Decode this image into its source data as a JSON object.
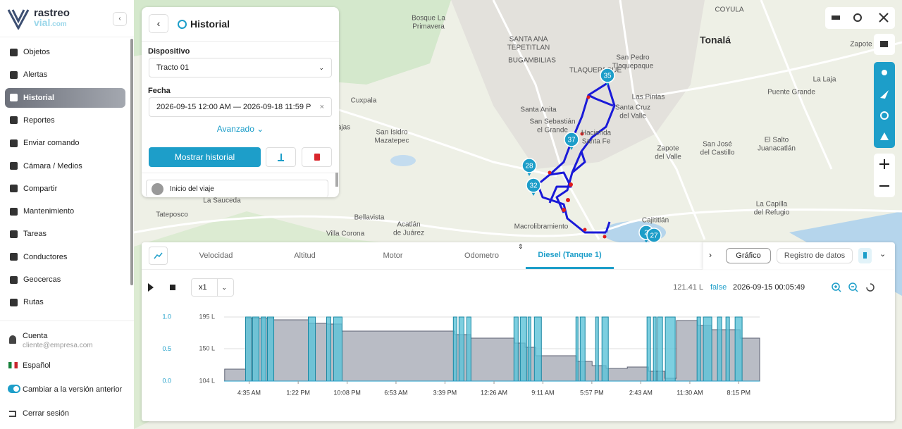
{
  "sidebar": {
    "logo": {
      "line1": "rastreo",
      "line2": "vial",
      "line3": ".com"
    },
    "menu": [
      "Objetos",
      "Alertas",
      "Historial",
      "Reportes",
      "Enviar comando",
      "Cámara / Medios",
      "Compartir",
      "Mantenimiento",
      "Tareas",
      "Conductores",
      "Geocercas",
      "Rutas"
    ],
    "account": {
      "title": "Cuenta",
      "email": "cliente@empresa.com"
    },
    "language": "Español",
    "toggle": "Cambiar a la versión anterior",
    "logout": "Cerrar sesión"
  },
  "history_panel": {
    "title": "Historial",
    "device_label": "Dispositivo",
    "device": "Tracto 01",
    "date_label": "Fecha",
    "date": "2026-09-15 12:00 AM — 2026-09-18 11:59 P",
    "advanced": "Avanzado",
    "show_button": "Mostrar historial",
    "trip_start": "Inicio del viaje"
  },
  "map": {
    "labels": [
      {
        "lines": [
          "Bosque La",
          "Primavera"
        ]
      },
      {
        "lines": [
          "SANTA ANA",
          "TEPETITLAN"
        ]
      },
      {
        "lines": [
          "BUGAMBILIAS"
        ]
      },
      {
        "lines": [
          "COYULA"
        ]
      },
      {
        "lines": [
          "Tonalá"
        ]
      },
      {
        "lines": [
          "San Pedro",
          "Tlaquepaque"
        ]
      },
      {
        "lines": [
          "TLAQUEPAQUE"
        ]
      },
      {
        "lines": [
          "Las Pintas"
        ]
      },
      {
        "lines": [
          "Santa Cruz",
          "del Valle"
        ]
      },
      {
        "lines": [
          "Cuxpala"
        ]
      },
      {
        "lines": [
          "Santa Anita"
        ]
      },
      {
        "lines": [
          "San Sebastián",
          "el Grande"
        ]
      },
      {
        "lines": [
          "Hacienda",
          "Santa Fe"
        ]
      },
      {
        "lines": [
          "San Isidro",
          "Mazatepec"
        ]
      },
      {
        "lines": [
          "ajas"
        ]
      },
      {
        "lines": [
          "Zapote",
          "del Valle"
        ]
      },
      {
        "lines": [
          "San José",
          "del Castillo"
        ]
      },
      {
        "lines": [
          "Puente Grande"
        ]
      },
      {
        "lines": [
          "La Laja"
        ]
      },
      {
        "lines": [
          "Zapote"
        ]
      },
      {
        "lines": [
          "El Salto",
          "Juanacatlán"
        ]
      },
      {
        "lines": [
          "La Sauceda"
        ]
      },
      {
        "lines": [
          "Tateposco"
        ]
      },
      {
        "lines": [
          "Bellavista"
        ]
      },
      {
        "lines": [
          "Acatlán",
          "de Juárez"
        ]
      },
      {
        "lines": [
          "Villa Corona"
        ]
      },
      {
        "lines": [
          "Cajititlán"
        ]
      },
      {
        "lines": [
          "La Capilla",
          "del Refugio"
        ]
      },
      {
        "lines": [
          "Macrolibramiento"
        ]
      }
    ],
    "markers": [
      "35",
      "37",
      "28",
      "32",
      "2",
      "27"
    ]
  },
  "bottom_panel": {
    "tabs": [
      "Velocidad",
      "Altitud",
      "Motor",
      "Odometro",
      "Diesel (Tanque 1)"
    ],
    "buttons": [
      "Gráfico",
      "Registro de datos"
    ],
    "speed": "x1",
    "readout": {
      "fuel": "121.41 L",
      "ignition": "false",
      "time": "2026-09-15 00:05:49"
    }
  },
  "chart_data": {
    "type": "area",
    "xlim": [
      0.1,
      96
    ],
    "xticks": [
      {
        "value": 4.583,
        "label": "4:35 AM"
      },
      {
        "value": 13.367,
        "label": "1:22 PM"
      },
      {
        "value": 22.133,
        "label": "10:08 PM"
      },
      {
        "value": 30.883,
        "label": "6:53 AM"
      },
      {
        "value": 39.65,
        "label": "3:39 PM"
      },
      {
        "value": 48.433,
        "label": "12:26 AM"
      },
      {
        "value": 57.183,
        "label": "9:11 AM"
      },
      {
        "value": 65.95,
        "label": "5:57 PM"
      },
      {
        "value": 74.717,
        "label": "2:43 AM"
      },
      {
        "value": 83.5,
        "label": "11:30 AM"
      },
      {
        "value": 92.25,
        "label": "8:15 PM"
      }
    ],
    "ylim": [
      104,
      195
    ],
    "yticks": [
      {
        "value": 104,
        "label": "104 L"
      },
      {
        "value": 150,
        "label": "150 L"
      },
      {
        "value": 195,
        "label": "195 L"
      }
    ],
    "y2lim": [
      0,
      1
    ],
    "y2ticks": [
      {
        "value": 0,
        "label": "0.0"
      },
      {
        "value": 0.5,
        "label": "0.5"
      },
      {
        "value": 1,
        "label": "1.0"
      }
    ],
    "grid": true,
    "series": [
      {
        "color": "#b9bcc5",
        "x": [
          0.2,
          3.95,
          9.0,
          15.2,
          18.5,
          21.2,
          41.4,
          44.3,
          52.1,
          54,
          55.9,
          63.2,
          66,
          68.5,
          72.3,
          76.1,
          79,
          81.1,
          84.9,
          87.4,
          92.5,
          96
        ],
        "values": [
          121,
          193,
          191,
          186,
          185,
          175,
          170,
          165,
          158,
          152,
          140,
          132,
          126,
          122,
          124,
          118,
          108,
          190,
          183,
          177,
          165,
          165
        ]
      },
      {
        "color": "#5cc3d8",
        "axis": "y2",
        "x": [
          3.95,
          5.21,
          6.73,
          7.86,
          15.18,
          18.46,
          19.72,
          41.15,
          42.16,
          43.55,
          52.0,
          53.14,
          54.52,
          55.66,
          63.1,
          63.86,
          66.63,
          67.76,
          75.83,
          76.97,
          77.73,
          79.11,
          84.79,
          85.92,
          88.44,
          89.96,
          91.6
        ],
        "x_end": [
          4.96,
          6.35,
          7.61,
          9.0,
          16.44,
          19.21,
          21.23,
          41.78,
          43.05,
          44.31,
          52.76,
          54.27,
          55.03,
          56.92,
          63.48,
          64.74,
          67.13,
          68.9,
          76.46,
          77.47,
          78.61,
          80.88,
          85.42,
          87.43,
          89.2,
          90.59,
          92.86
        ],
        "values": [
          1,
          1,
          1,
          1,
          1,
          1,
          1,
          1,
          1,
          1,
          1,
          1,
          1,
          1,
          1,
          1,
          1,
          1,
          1,
          1,
          1,
          1,
          1,
          1,
          1,
          1,
          1
        ]
      }
    ]
  }
}
